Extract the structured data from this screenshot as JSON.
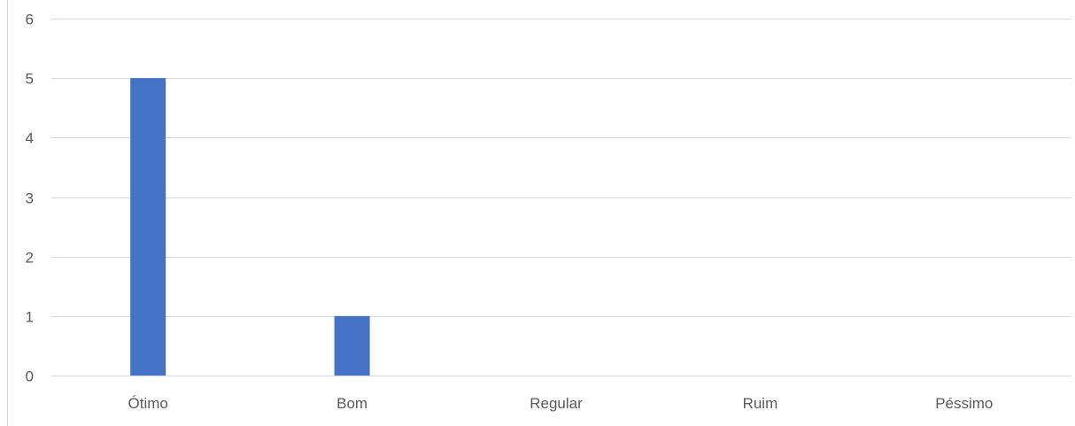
{
  "chart_data": {
    "type": "bar",
    "categories": [
      "Ótimo",
      "Bom",
      "Regular",
      "Ruim",
      "Péssimo"
    ],
    "values": [
      5,
      1,
      0,
      0,
      0
    ],
    "title": "",
    "xlabel": "",
    "ylabel": "",
    "ylim": [
      0,
      6
    ],
    "yticks": [
      "0",
      "1",
      "2",
      "3",
      "4",
      "5",
      "6"
    ],
    "grid": true,
    "legend": "none",
    "colors": {
      "bar": "#4472c4",
      "grid": "#d9d9d9",
      "text": "#595959",
      "frame": "#d9d9d9"
    }
  }
}
